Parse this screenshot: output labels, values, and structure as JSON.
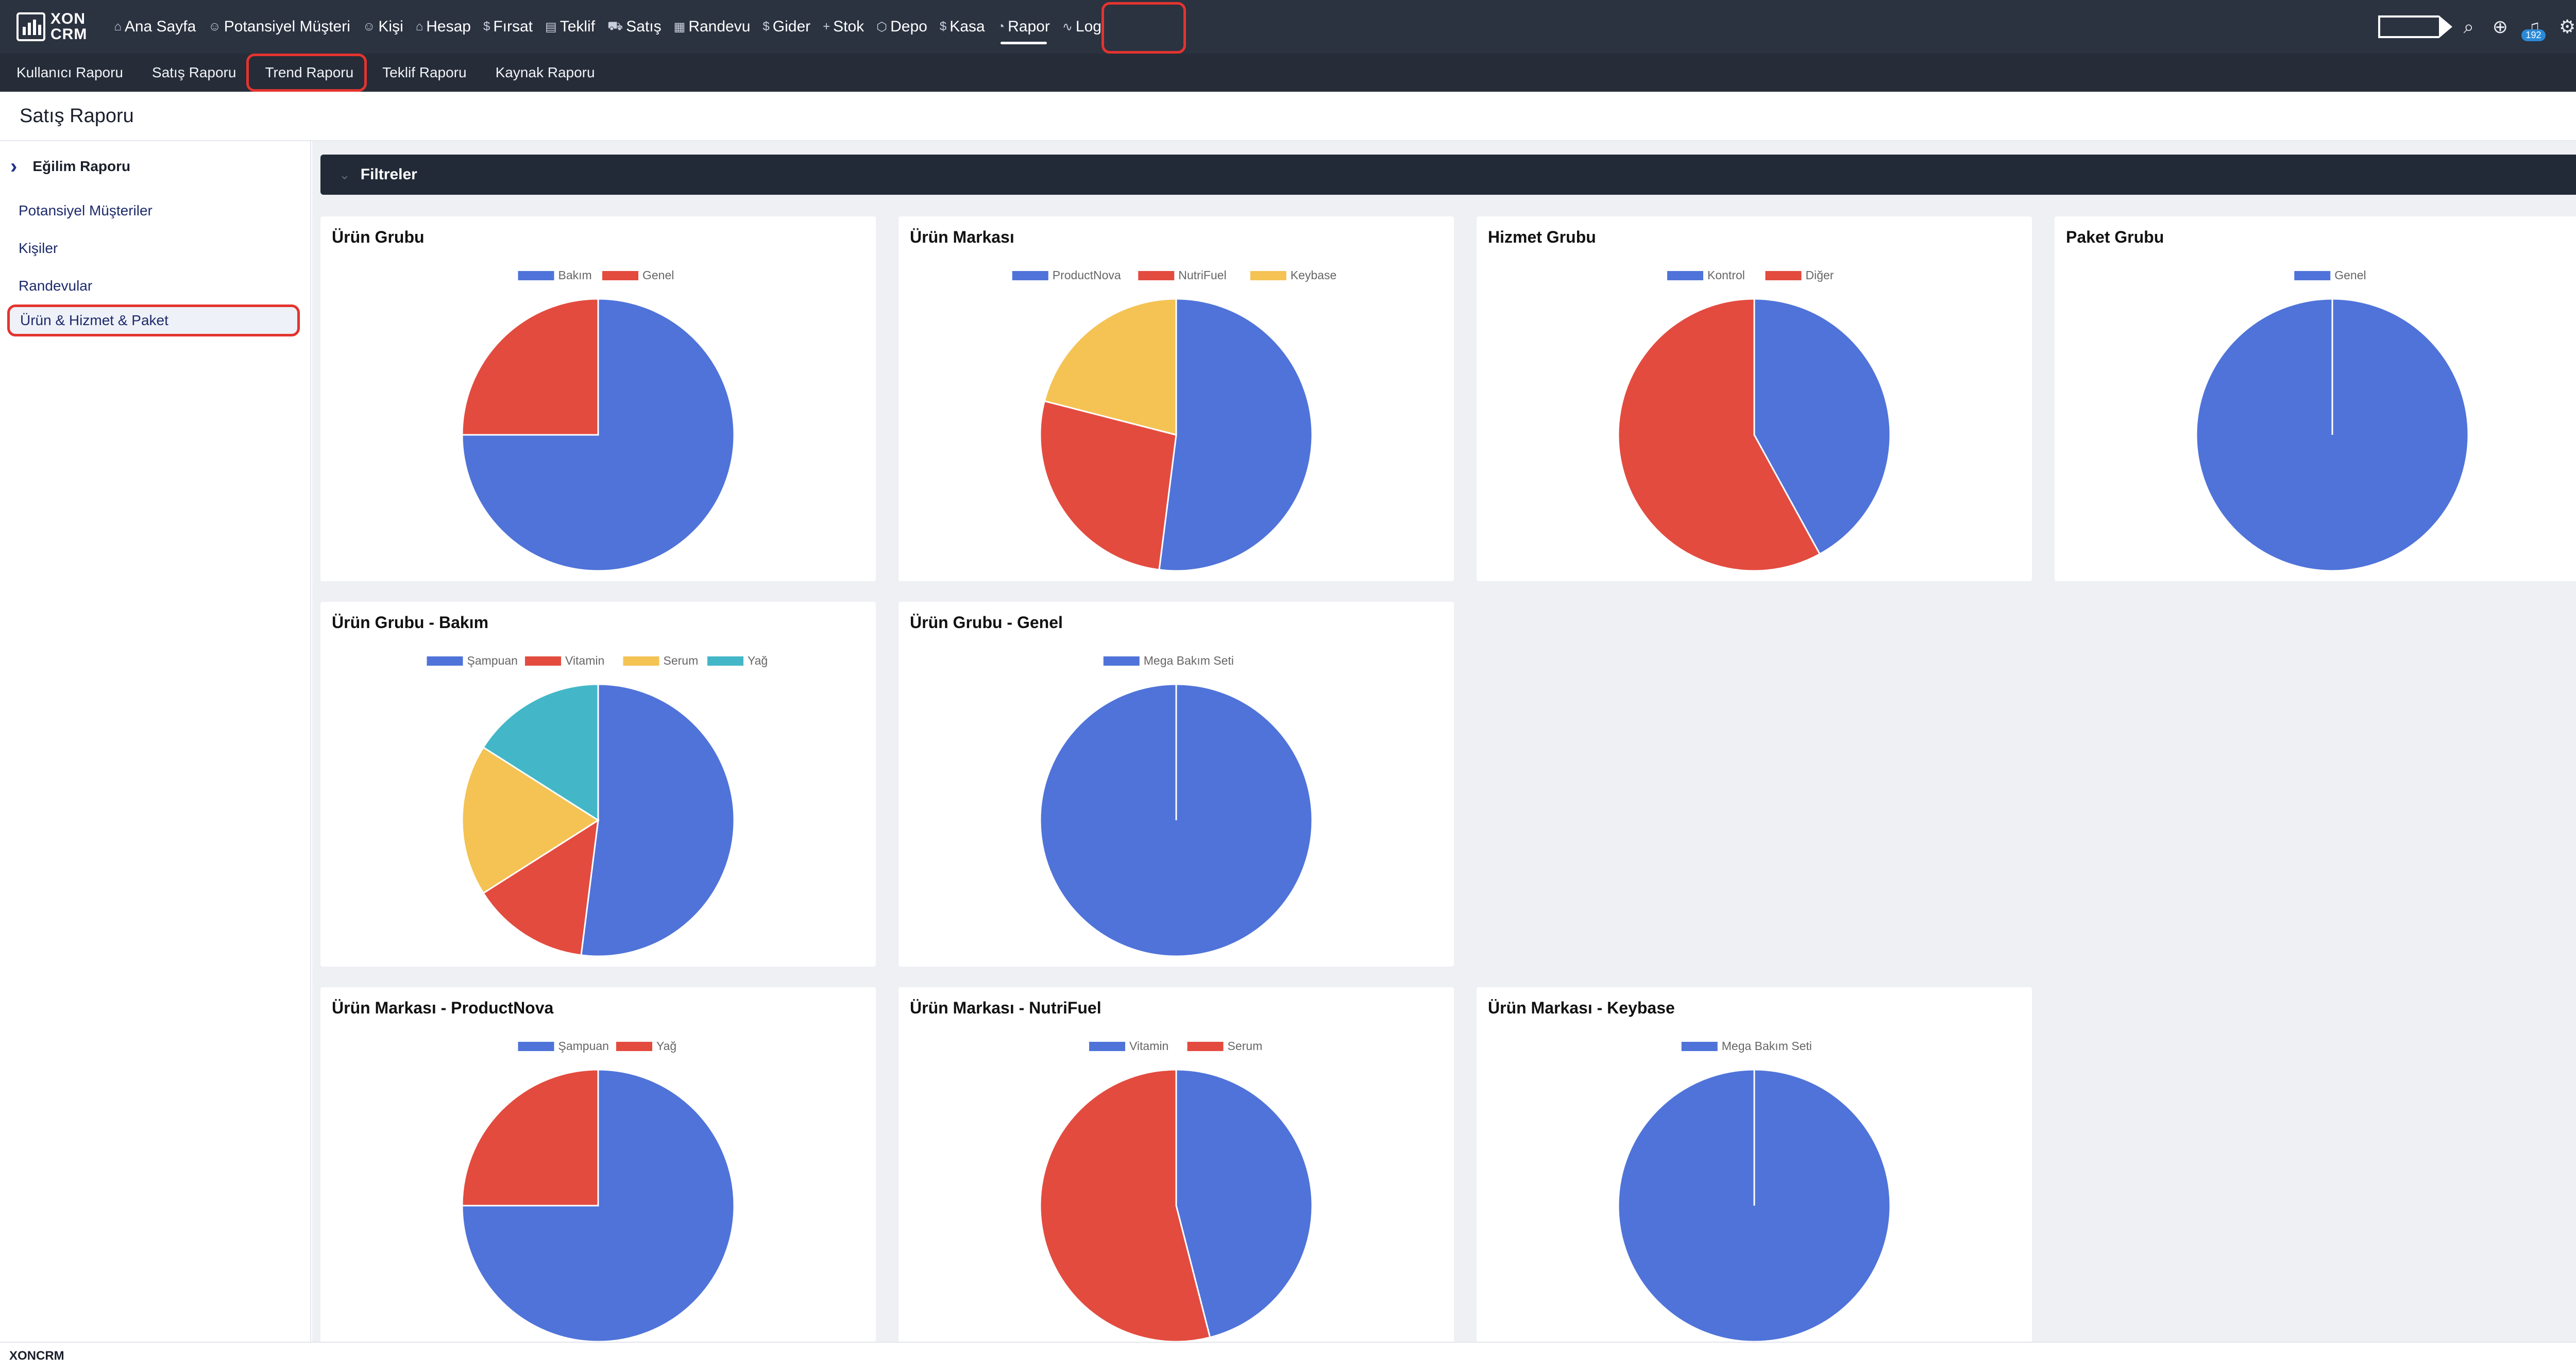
{
  "app": {
    "logo_line1": "XON",
    "logo_line2": "CRM"
  },
  "nav": [
    {
      "label": "Ana Sayfa",
      "icon": "home-icon",
      "glyph": "⌂"
    },
    {
      "label": "Potansiyel Müşteri",
      "icon": "person-icon",
      "glyph": "☺"
    },
    {
      "label": "Kişi",
      "icon": "people-icon",
      "glyph": "☺"
    },
    {
      "label": "Hesap",
      "icon": "building-icon",
      "glyph": "⌂"
    },
    {
      "label": "Fırsat",
      "icon": "dollar-icon",
      "glyph": "$"
    },
    {
      "label": "Teklif",
      "icon": "document-icon",
      "glyph": "▤"
    },
    {
      "label": "Satış",
      "icon": "cart-icon",
      "glyph": "⛟"
    },
    {
      "label": "Randevu",
      "icon": "calendar-icon",
      "glyph": "▦"
    },
    {
      "label": "Gider",
      "icon": "dollar-icon",
      "glyph": "$"
    },
    {
      "label": "Stok",
      "icon": "plus-icon",
      "glyph": "+"
    },
    {
      "label": "Depo",
      "icon": "box-icon",
      "glyph": "⬡"
    },
    {
      "label": "Kasa",
      "icon": "dollar-icon",
      "glyph": "$"
    },
    {
      "label": "Rapor",
      "icon": "pie-chart-icon",
      "glyph": "◔",
      "active": true
    },
    {
      "label": "Log",
      "icon": "activity-icon",
      "glyph": "∿"
    }
  ],
  "topright": {
    "notification_count": "192"
  },
  "subnav": [
    "Kullanıcı Raporu",
    "Satış Raporu",
    "Trend Raporu",
    "Teklif Raporu",
    "Kaynak Raporu"
  ],
  "page": {
    "title": "Satış Raporu"
  },
  "sidebar": {
    "header": "Eğilim Raporu",
    "items": [
      "Potansiyel Müşteriler",
      "Kişiler",
      "Randevular",
      "Ürün & Hizmet & Paket"
    ]
  },
  "filters": {
    "label": "Filtreler"
  },
  "colors": {
    "blue": "#4f73d9",
    "red": "#e34b3f",
    "yellow": "#f4c354",
    "cyan": "#43b7c8"
  },
  "footer": {
    "text": "XONCRM"
  },
  "chart_data": [
    {
      "type": "pie",
      "title": "Ürün Grubu",
      "categories": [
        "Bakım",
        "Genel"
      ],
      "values": [
        75,
        25
      ],
      "colors": [
        "#4f73d9",
        "#e34b3f"
      ],
      "legend": "top"
    },
    {
      "type": "pie",
      "title": "Ürün Markası",
      "categories": [
        "ProductNova",
        "NutriFuel",
        "Keybase"
      ],
      "values": [
        52,
        27,
        21
      ],
      "colors": [
        "#4f73d9",
        "#e34b3f",
        "#f4c354"
      ],
      "legend": "top"
    },
    {
      "type": "pie",
      "title": "Hizmet Grubu",
      "categories": [
        "Kontrol",
        "Diğer"
      ],
      "values": [
        42,
        58
      ],
      "colors": [
        "#4f73d9",
        "#e34b3f"
      ],
      "legend": "top"
    },
    {
      "type": "pie",
      "title": "Paket Grubu",
      "categories": [
        "Genel"
      ],
      "values": [
        100
      ],
      "colors": [
        "#4f73d9"
      ],
      "legend": "top"
    },
    {
      "type": "pie",
      "title": "Ürün Grubu - Bakım",
      "categories": [
        "Şampuan",
        "Vitamin",
        "Serum",
        "Yağ"
      ],
      "values": [
        52,
        14,
        18,
        16
      ],
      "colors": [
        "#4f73d9",
        "#e34b3f",
        "#f4c354",
        "#43b7c8"
      ],
      "legend": "top"
    },
    {
      "type": "pie",
      "title": "Ürün Grubu - Genel",
      "categories": [
        "Mega Bakım Seti"
      ],
      "values": [
        100
      ],
      "colors": [
        "#4f73d9"
      ],
      "legend": "top"
    },
    {
      "type": "pie",
      "title": "Ürün Markası - ProductNova",
      "categories": [
        "Şampuan",
        "Yağ"
      ],
      "values": [
        75,
        25
      ],
      "colors": [
        "#4f73d9",
        "#e34b3f"
      ],
      "legend": "top"
    },
    {
      "type": "pie",
      "title": "Ürün Markası - NutriFuel",
      "categories": [
        "Vitamin",
        "Serum"
      ],
      "values": [
        46,
        54
      ],
      "colors": [
        "#4f73d9",
        "#e34b3f"
      ],
      "legend": "top"
    },
    {
      "type": "pie",
      "title": "Ürün Markası - Keybase",
      "categories": [
        "Mega Bakım Seti"
      ],
      "values": [
        100
      ],
      "colors": [
        "#4f73d9"
      ],
      "legend": "top"
    }
  ]
}
